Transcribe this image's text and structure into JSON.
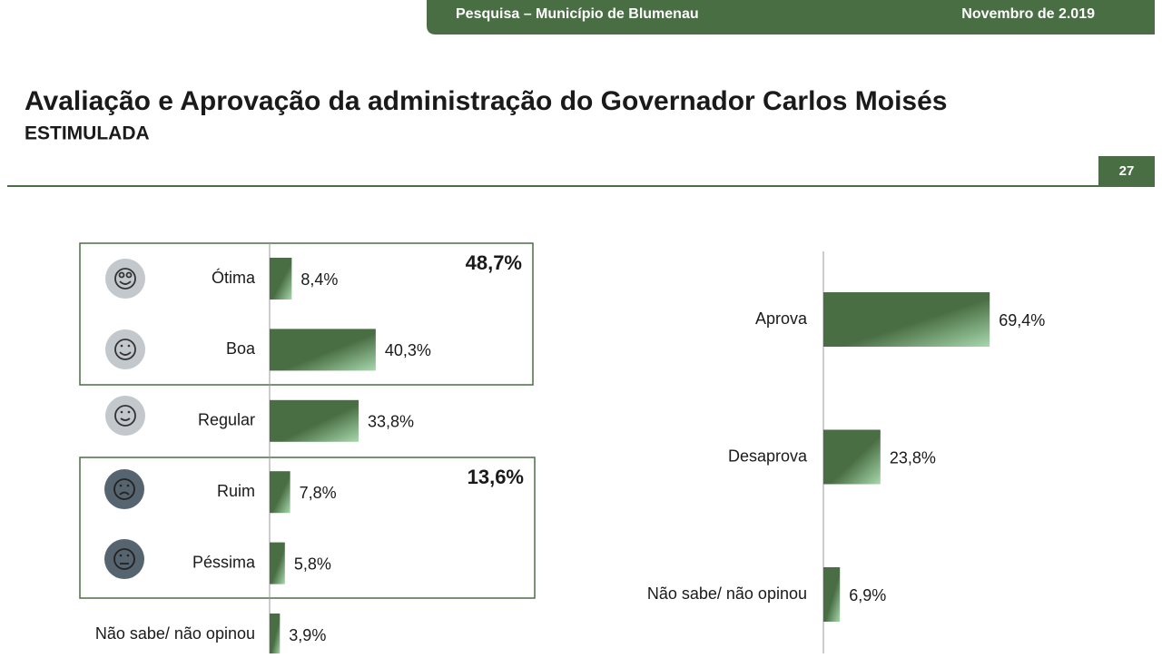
{
  "header": {
    "survey": "Pesquisa – Município de Blumenau",
    "date": "Novembro de 2.019",
    "title": "Avaliação e Aprovação da administração do Governador Carlos Moisés",
    "subtitle": "ESTIMULADA",
    "page": "27"
  },
  "chart_data": [
    {
      "type": "hbar",
      "categories": [
        "Ótima",
        "Boa",
        "Regular",
        "Ruim",
        "Péssima",
        "Não sabe/ não opinou"
      ],
      "values": [
        8.4,
        40.3,
        33.8,
        7.8,
        5.8,
        3.9
      ],
      "value_labels": [
        "8,4%",
        "40,3%",
        "33,8%",
        "7,8%",
        "5,8%",
        "3,9%"
      ],
      "annotations": [
        "48,7%",
        "13,6%"
      ],
      "color": "#4a6e43"
    },
    {
      "type": "hbar",
      "categories": [
        "Aprova",
        "Desaprova",
        "Não sabe/ não opinou"
      ],
      "values": [
        69.4,
        23.8,
        6.9
      ],
      "value_labels": [
        "69,4%",
        "23,8%",
        "6,9%"
      ],
      "color": "#4a6e43"
    }
  ]
}
